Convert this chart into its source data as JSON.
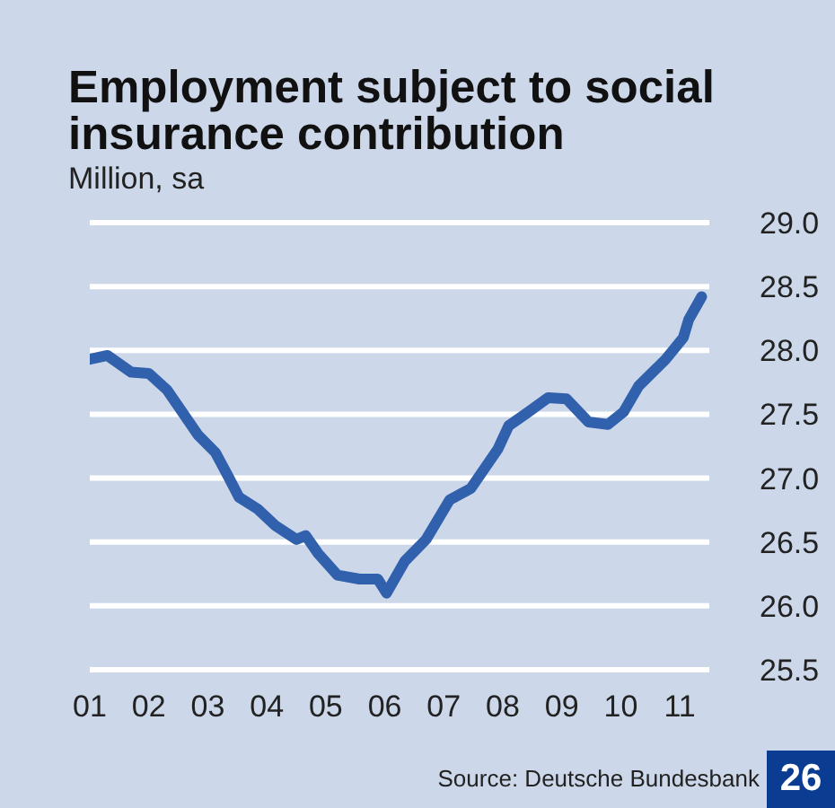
{
  "chart_data": {
    "type": "line",
    "title": "Employment subject to social insurance contribution",
    "subtitle": "Million, sa",
    "x": [
      2001.0,
      2001.3,
      2001.7,
      2002.0,
      2002.31,
      2002.83,
      2003.13,
      2003.35,
      2003.53,
      2003.84,
      2004.14,
      2004.5,
      2004.66,
      2004.87,
      2005.2,
      2005.57,
      2005.88,
      2006.03,
      2006.34,
      2006.7,
      2007.1,
      2007.46,
      2007.92,
      2008.1,
      2008.41,
      2008.77,
      2009.08,
      2009.45,
      2009.78,
      2010.05,
      2010.3,
      2010.76,
      2011.06,
      2011.15,
      2011.37
    ],
    "series": [
      {
        "color": "#3160ad",
        "values": [
          27.93,
          27.96,
          27.83,
          27.82,
          27.69,
          27.34,
          27.2,
          27.01,
          26.85,
          26.76,
          26.63,
          26.52,
          26.55,
          26.41,
          26.24,
          26.21,
          26.21,
          26.1,
          26.35,
          26.52,
          26.83,
          26.92,
          27.23,
          27.41,
          27.51,
          27.63,
          27.62,
          27.44,
          27.42,
          27.52,
          27.72,
          27.93,
          28.1,
          28.24,
          28.42
        ]
      }
    ],
    "xlim": [
      2001,
      2011.5
    ],
    "xticks": [
      {
        "value": 2001,
        "label": "01"
      },
      {
        "value": 2002,
        "label": "02"
      },
      {
        "value": 2003,
        "label": "03"
      },
      {
        "value": 2004,
        "label": "04"
      },
      {
        "value": 2005,
        "label": "05"
      },
      {
        "value": 2006,
        "label": "06"
      },
      {
        "value": 2007,
        "label": "07"
      },
      {
        "value": 2008,
        "label": "08"
      },
      {
        "value": 2009,
        "label": "09"
      },
      {
        "value": 2010,
        "label": "10"
      },
      {
        "value": 2011,
        "label": "11"
      }
    ],
    "ylim": [
      25.5,
      29.0
    ],
    "yticks": [
      {
        "value": 25.5,
        "label": "25.5"
      },
      {
        "value": 26,
        "label": "26.0"
      },
      {
        "value": 26.5,
        "label": "26.5"
      },
      {
        "value": 27,
        "label": "27.0"
      },
      {
        "value": 27.5,
        "label": "27.5"
      },
      {
        "value": 28,
        "label": "28.0"
      },
      {
        "value": 28.5,
        "label": "28.5"
      },
      {
        "value": 29,
        "label": "29.0"
      }
    ],
    "grid": "y",
    "marker": "none",
    "line_style": "solid",
    "annotations": [
      "Source: Deutsche Bundesbank",
      "26"
    ]
  }
}
